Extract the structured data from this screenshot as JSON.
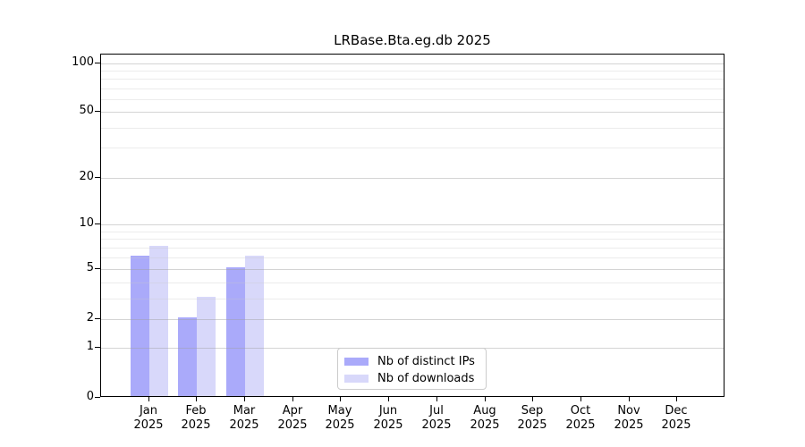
{
  "title": "LRBase.Bta.eg.db 2025",
  "legend": {
    "items": [
      {
        "id": "distinct-ips",
        "label": "Nb of distinct IPs",
        "color": "#aaaafa"
      },
      {
        "id": "downloads",
        "label": "Nb of downloads",
        "color": "#d8d8fa"
      }
    ]
  },
  "y_axis": {
    "tick_labels": [
      "100",
      "50",
      "20",
      "10",
      "5",
      "2",
      "1",
      "0"
    ],
    "tick_values": [
      100,
      50,
      20,
      10,
      5,
      2,
      1,
      0
    ]
  },
  "x_axis": {
    "months": [
      "Jan",
      "Feb",
      "Mar",
      "Apr",
      "May",
      "Jun",
      "Jul",
      "Aug",
      "Sep",
      "Oct",
      "Nov",
      "Dec"
    ],
    "year": "2025"
  },
  "chart_data": {
    "type": "bar",
    "title": "LRBase.Bta.eg.db 2025",
    "categories": [
      "Jan 2025",
      "Feb 2025",
      "Mar 2025",
      "Apr 2025",
      "May 2025",
      "Jun 2025",
      "Jul 2025",
      "Aug 2025",
      "Sep 2025",
      "Oct 2025",
      "Nov 2025",
      "Dec 2025"
    ],
    "series": [
      {
        "name": "Nb of distinct IPs",
        "color": "#aaaafa",
        "values": [
          6,
          2,
          5,
          0,
          0,
          0,
          0,
          0,
          0,
          0,
          0,
          0
        ]
      },
      {
        "name": "Nb of downloads",
        "color": "#d8d8fa",
        "values": [
          7,
          3,
          6,
          0,
          0,
          0,
          0,
          0,
          0,
          0,
          0,
          0
        ]
      }
    ],
    "y_scale": "log-like (0 baseline, log ticks 1-100)",
    "y_ticks": [
      0,
      1,
      2,
      5,
      10,
      20,
      50,
      100
    ],
    "ylim": [
      0,
      100
    ],
    "grid": true,
    "legend_position": "lower center, inside axes"
  }
}
